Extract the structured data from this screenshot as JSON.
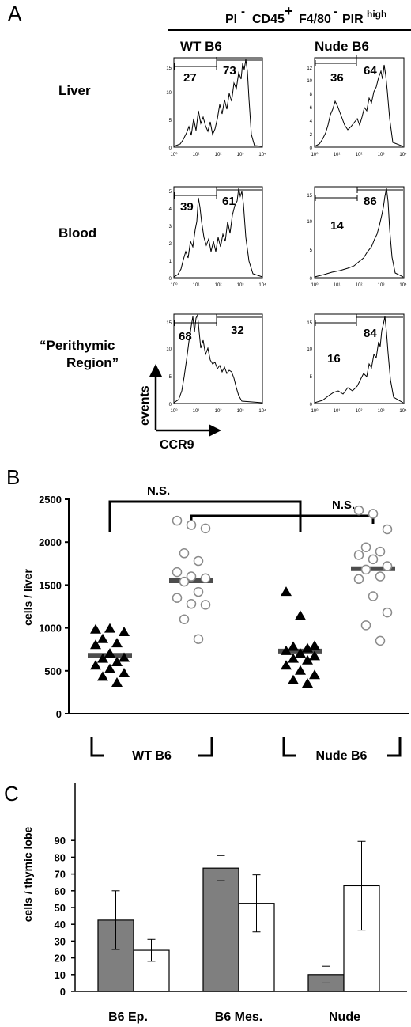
{
  "panel_a": {
    "letter": "A",
    "header": {
      "pi": "PI",
      "minus1": "-",
      "cd45": "CD45",
      "plus": "+",
      "f480": "F4/80",
      "minus2": "-",
      "pir": "PIR",
      "high": "high"
    },
    "columns": [
      "WT B6",
      "Nude B6"
    ],
    "rows": [
      "Liver",
      "Blood",
      "“Perithymic",
      "Region”"
    ],
    "axis": {
      "y": "events",
      "x": "CCR9"
    },
    "x_ticks": [
      "10⁰",
      "10¹",
      "10²",
      "10³",
      "10⁴"
    ],
    "histograms": [
      {
        "tissue": "Liver",
        "strain": "WT B6",
        "y_ticks": [
          "0",
          "5",
          "10",
          "15"
        ],
        "ymax": 16,
        "gates": {
          "low": "27",
          "high": "73"
        }
      },
      {
        "tissue": "Liver",
        "strain": "Nude B6",
        "y_ticks": [
          "0",
          "2",
          "4",
          "6",
          "8",
          "10",
          "12"
        ],
        "ymax": 13,
        "gates": {
          "low": "36",
          "high": "64"
        }
      },
      {
        "tissue": "Blood",
        "strain": "WT B6",
        "y_ticks": [
          "0",
          "1",
          "2",
          "3",
          "4",
          "5"
        ],
        "ymax": 5.2,
        "gates": {
          "low": "39",
          "high": "61"
        }
      },
      {
        "tissue": "Blood",
        "strain": "Nude B6",
        "y_ticks": [
          "0",
          "5",
          "10",
          "15"
        ],
        "ymax": 16,
        "gates": {
          "low": "14",
          "high": "86"
        }
      },
      {
        "tissue": "Perithymic Region",
        "strain": "WT B6",
        "y_ticks": [
          "0",
          "5",
          "10",
          "15"
        ],
        "ymax": 16,
        "gates": {
          "low": "68",
          "high": "32"
        }
      },
      {
        "tissue": "Perithymic Region",
        "strain": "Nude B6",
        "y_ticks": [
          "0",
          "5",
          "10",
          "15"
        ],
        "ymax": 16,
        "gates": {
          "low": "16",
          "high": "84"
        }
      }
    ]
  },
  "panel_b": {
    "letter": "B",
    "ylabel": "cells / liver",
    "y_ticks": [
      "0",
      "500",
      "1000",
      "1500",
      "2000",
      "2500"
    ],
    "ns1": "N.S.",
    "ns2": "N.S.",
    "group_labels": [
      "WT B6",
      "Nude B6"
    ]
  },
  "panel_c": {
    "letter": "C",
    "ylabel": "cells / thymic lobe",
    "y_ticks": [
      "0",
      "10",
      "20",
      "30",
      "40",
      "50",
      "60",
      "70",
      "80",
      "90"
    ],
    "categories": [
      "B6 Ep.",
      "B6 Mes.",
      "Nude"
    ]
  },
  "chart_data": [
    {
      "type": "scatter",
      "panel": "B",
      "ylabel": "cells / liver",
      "ylim": [
        0,
        2500
      ],
      "groups": [
        "WT B6",
        "Nude B6"
      ],
      "series": [
        {
          "group": "WT B6",
          "marker": "filled-triangle",
          "mean": 680,
          "values": [
            980,
            990,
            950,
            870,
            820,
            800,
            700,
            650,
            640,
            600,
            560,
            520,
            470,
            430,
            360
          ]
        },
        {
          "group": "WT B6",
          "marker": "open-circle",
          "mean": 1550,
          "values": [
            2250,
            2200,
            2160,
            1870,
            1780,
            1650,
            1600,
            1580,
            1540,
            1420,
            1350,
            1280,
            1270,
            1100,
            870
          ]
        },
        {
          "group": "Nude B6",
          "marker": "filled-triangle",
          "mean": 730,
          "values": [
            1420,
            1140,
            790,
            780,
            760,
            730,
            700,
            670,
            640,
            620,
            560,
            500,
            450,
            390,
            350
          ]
        },
        {
          "group": "Nude B6",
          "marker": "open-circle",
          "mean": 1690,
          "values": [
            2370,
            2330,
            2150,
            1940,
            1890,
            1850,
            1800,
            1720,
            1680,
            1600,
            1570,
            1370,
            1180,
            1030,
            850
          ]
        }
      ],
      "significance": [
        {
          "compare": [
            "WT B6 filled",
            "Nude B6 filled"
          ],
          "label": "N.S."
        },
        {
          "compare": [
            "WT B6 open",
            "Nude B6 open"
          ],
          "label": "N.S."
        }
      ]
    },
    {
      "type": "bar",
      "panel": "C",
      "ylabel": "cells / thymic lobe",
      "ylim": [
        0,
        95
      ],
      "categories": [
        "B6 Ep.",
        "B6 Mes.",
        "Nude"
      ],
      "series": [
        {
          "fill": "#7f7f7f",
          "values": [
            42.5,
            73.5,
            10
          ],
          "errors": [
            17.5,
            7.5,
            5
          ]
        },
        {
          "fill": "#ffffff",
          "values": [
            24.5,
            52.5,
            63
          ],
          "errors": [
            6.5,
            17,
            26.5
          ]
        }
      ]
    }
  ]
}
